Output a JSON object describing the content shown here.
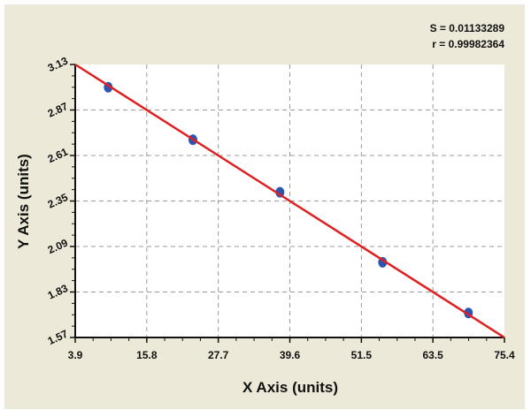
{
  "chart_data": {
    "type": "scatter",
    "xlabel": "X Axis (units)",
    "ylabel": "Y Axis (units)",
    "xlim": [
      3.9,
      75.4
    ],
    "ylim": [
      1.57,
      3.13
    ],
    "xticks": [
      "3.9",
      "15.8",
      "27.7",
      "39.6",
      "51.5",
      "63.5",
      "75.4"
    ],
    "yticks": [
      "1.57",
      "1.83",
      "2.09",
      "2.35",
      "2.61",
      "2.87",
      "3.13"
    ],
    "grid": true,
    "points": {
      "x": [
        9.4,
        23.5,
        38.0,
        55.1,
        69.4
      ],
      "y": [
        3.0,
        2.7,
        2.4,
        2.0,
        1.71
      ]
    },
    "fit_line": {
      "x": [
        3.9,
        75.4
      ],
      "y": [
        3.13,
        1.57
      ]
    },
    "annotations": [
      "S = 0.01133289",
      "r = 0.99982364"
    ],
    "colors": {
      "points": "#2b55b0",
      "line": "#e02020",
      "background": "#ede9d9",
      "plot": "#ffffff",
      "grid": "#999999"
    }
  }
}
